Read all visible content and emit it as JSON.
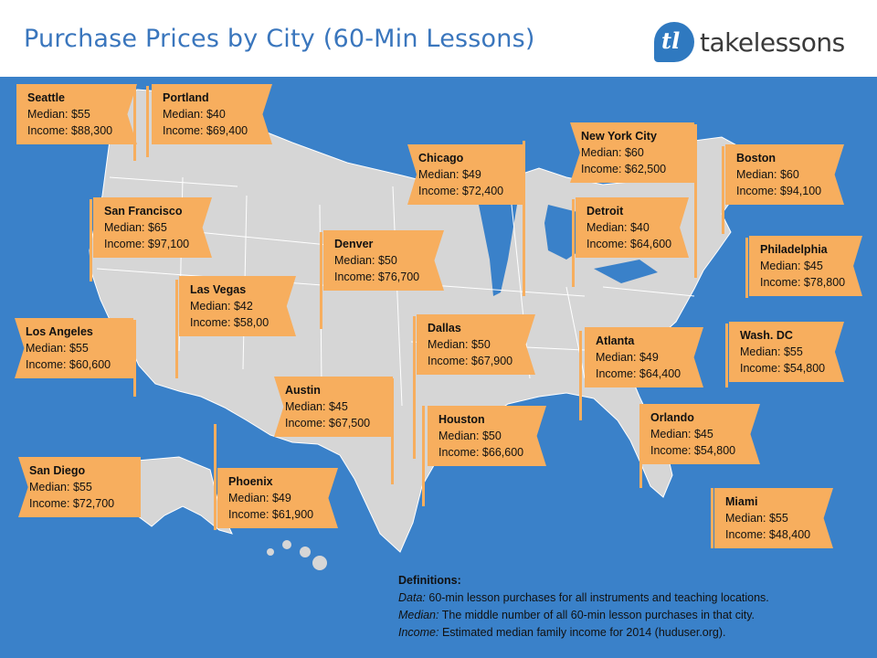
{
  "title": "Purchase Prices by City (60-Min Lessons)",
  "logo": {
    "mark": "tl",
    "text": "takelessons"
  },
  "colors": {
    "ocean": "#3a81c9",
    "land": "#d6d6d6",
    "flag": "#f7ae5e",
    "title": "#3a76bd"
  },
  "cities": [
    {
      "name": "Seattle",
      "median": "Median: $55",
      "income": "Income: $88,300"
    },
    {
      "name": "Portland",
      "median": "Median: $40",
      "income": "Income: $69,400"
    },
    {
      "name": "San Francisco",
      "median": "Median: $65",
      "income": "Income: $97,100"
    },
    {
      "name": "Las Vegas",
      "median": "Median: $42",
      "income": "Income: $58,00"
    },
    {
      "name": "Los Angeles",
      "median": "Median: $55",
      "income": "Income: $60,600"
    },
    {
      "name": "San Diego",
      "median": "Median: $55",
      "income": "Income: $72,700"
    },
    {
      "name": "Phoenix",
      "median": "Median: $49",
      "income": "Income: $61,900"
    },
    {
      "name": "Denver",
      "median": "Median: $50",
      "income": "Income: $76,700"
    },
    {
      "name": "Austin",
      "median": "Median: $45",
      "income": "Income: $67,500"
    },
    {
      "name": "Dallas",
      "median": "Median: $50",
      "income": "Income: $67,900"
    },
    {
      "name": "Houston",
      "median": "Median: $50",
      "income": "Income: $66,600"
    },
    {
      "name": "Chicago",
      "median": "Median: $49",
      "income": "Income: $72,400"
    },
    {
      "name": "Detroit",
      "median": "Median: $40",
      "income": "Income: $64,600"
    },
    {
      "name": "New York City",
      "median": "Median: $60",
      "income": "Income: $62,500"
    },
    {
      "name": "Boston",
      "median": "Median: $60",
      "income": "Income: $94,100"
    },
    {
      "name": "Philadelphia",
      "median": "Median: $45",
      "income": "Income: $78,800"
    },
    {
      "name": "Wash. DC",
      "median": "Median: $55",
      "income": "Income: $54,800"
    },
    {
      "name": "Atlanta",
      "median": "Median: $49",
      "income": "Income: $64,400"
    },
    {
      "name": "Orlando",
      "median": "Median: $45",
      "income": "Income: $54,800"
    },
    {
      "name": "Miami",
      "median": "Median: $55",
      "income": "Income: $48,400"
    }
  ],
  "definitions": {
    "heading": "Definitions:",
    "data_term": "Data:",
    "data_text": " 60-min lesson purchases for all instruments and teaching locations.",
    "median_term": "Median:",
    "median_text": " The middle number of all 60-min lesson purchases in that city.",
    "income_term": "Income:",
    "income_text": " Estimated median family income for 2014 (huduser.org)."
  }
}
